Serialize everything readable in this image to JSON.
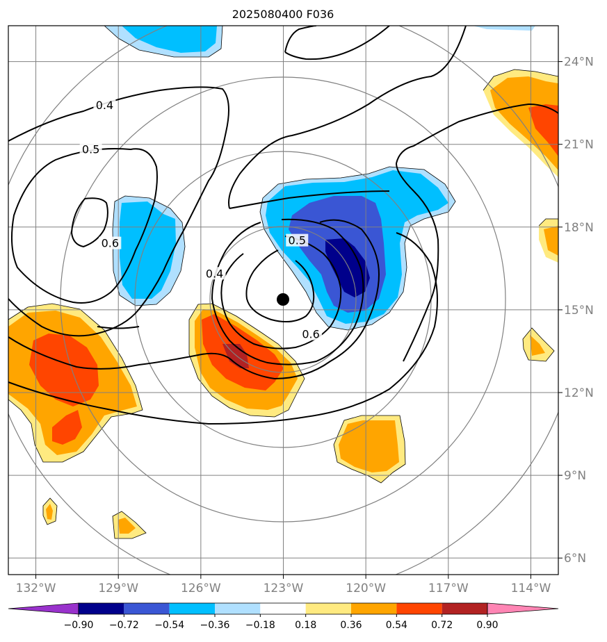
{
  "chart_data": {
    "type": "contour",
    "title": "2025080400 F036",
    "lon_ticks": [
      "132°W",
      "129°W",
      "126°W",
      "123°W",
      "120°W",
      "117°W",
      "114°W"
    ],
    "lat_ticks": [
      "24°N",
      "21°N",
      "18°N",
      "15°N",
      "12°N",
      "9°N",
      "6°N"
    ],
    "lon_values": [
      -132,
      -129,
      -126,
      -123,
      -120,
      -117,
      -114
    ],
    "lat_values": [
      24,
      21,
      18,
      15,
      12,
      9,
      6
    ],
    "xlim": [
      -133,
      -113
    ],
    "ylim": [
      5.4,
      25.3
    ],
    "center": {
      "lon": -123,
      "lat": 15.4
    },
    "contour_levels": [
      "0.4",
      "0.5",
      "0.6"
    ],
    "contour_labels": [
      {
        "text": "0.4",
        "lon": -129.5,
        "lat": 22.4
      },
      {
        "text": "0.5",
        "lon": -130.0,
        "lat": 20.8
      },
      {
        "text": "0.6",
        "lon": -129.3,
        "lat": 17.4
      },
      {
        "text": "0.5",
        "lon": -122.5,
        "lat": 17.5
      },
      {
        "text": "0.4",
        "lon": -125.5,
        "lat": 16.3
      },
      {
        "text": "0.6",
        "lon": -122.0,
        "lat": 14.1
      }
    ],
    "colorbar": {
      "ticks": [
        "−0.90",
        "−0.72",
        "−0.54",
        "−0.36",
        "−0.18",
        "0.18",
        "0.36",
        "0.54",
        "0.72",
        "0.90"
      ],
      "colors": [
        "#9932cc",
        "#00008b",
        "#3a56d4",
        "#00bfff",
        "#b0e0ff",
        "#ffffff",
        "#ffea80",
        "#ffa500",
        "#ff4500",
        "#b22222",
        "#ff85b4"
      ]
    },
    "fill_colors": {
      "neg_light": "#b0e0ff",
      "neg_cyan": "#00bfff",
      "neg_blue": "#3a56d4",
      "neg_navy": "#00008b",
      "pos_yellow": "#ffea80",
      "pos_orange": "#ffa500",
      "pos_red": "#ff4500",
      "pos_dark": "#b22222"
    }
  }
}
